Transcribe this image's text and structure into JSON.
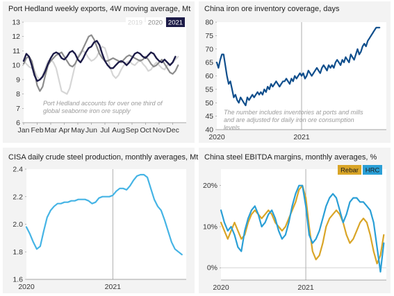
{
  "chart_data": [
    {
      "type": "line",
      "title": "Port Hedland weekly exports, 4W moving average, Mt",
      "categories": [
        "Jan",
        "Feb",
        "Mar",
        "Apr",
        "May",
        "Jun",
        "Jul",
        "Aug",
        "Sep",
        "Oct",
        "Nov",
        "Dec"
      ],
      "yticks": [
        "6",
        "7",
        "8",
        "9",
        "10",
        "11",
        "12",
        "13"
      ],
      "ylim": [
        6,
        13
      ],
      "annotation": "Port Hedland accounts for over one third of global seaborne iron ore supply",
      "series": [
        {
          "name": "2019",
          "color": "#d6d6d6",
          "x": [
            0,
            0.2,
            0.4,
            0.6,
            0.8,
            1,
            1.2,
            1.4,
            1.6,
            1.8,
            2,
            2.2,
            2.4,
            2.6,
            2.8,
            3,
            3.2,
            3.4,
            3.6,
            3.8,
            4,
            4.2,
            4.4,
            4.6,
            4.8,
            5,
            5.2,
            5.4,
            5.6,
            5.8,
            6,
            6.2,
            6.4,
            6.6,
            6.8,
            7,
            7.2,
            7.4,
            7.6,
            7.8,
            8,
            8.2,
            8.4,
            8.6,
            8.8,
            9,
            9.2,
            9.4,
            9.6,
            9.8,
            10,
            10.2,
            10.4,
            10.6,
            10.8,
            11,
            11.2,
            11.4
          ],
          "values": [
            10.3,
            10.1,
            9.9,
            9.8,
            9.6,
            9.2,
            9.0,
            9.3,
            9.8,
            10.3,
            10.4,
            10.2,
            9.8,
            9.0,
            8.2,
            8.1,
            8.0,
            8.4,
            9.2,
            10.0,
            10.6,
            10.9,
            11.0,
            10.8,
            10.5,
            10.3,
            10.4,
            10.6,
            11.0,
            11.3,
            11.2,
            10.6,
            9.8,
            9.3,
            9.1,
            9.3,
            9.7,
            10.0,
            10.2,
            10.3,
            10.1,
            10.0,
            10.2,
            10.4,
            10.1,
            9.9,
            9.6,
            9.7,
            10.0,
            10.2,
            10.0,
            9.8,
            9.7,
            10.0,
            10.1,
            10.2,
            10.4,
            10.6
          ]
        },
        {
          "name": "2020",
          "color": "#8c8c8c",
          "x": [
            0,
            0.2,
            0.4,
            0.6,
            0.8,
            1,
            1.2,
            1.4,
            1.6,
            1.8,
            2,
            2.2,
            2.4,
            2.6,
            2.8,
            3,
            3.2,
            3.4,
            3.6,
            3.8,
            4,
            4.2,
            4.4,
            4.6,
            4.8,
            5,
            5.2,
            5.4,
            5.6,
            5.8,
            6,
            6.2,
            6.4,
            6.6,
            6.8,
            7,
            7.2,
            7.4,
            7.6,
            7.8,
            8,
            8.2,
            8.4,
            8.6,
            8.8,
            9,
            9.2,
            9.4,
            9.6,
            9.8,
            10,
            10.2,
            10.4,
            10.6,
            10.8,
            11,
            11.2,
            11.4
          ],
          "values": [
            10.1,
            10.5,
            10.6,
            10.3,
            9.5,
            8.6,
            8.2,
            8.5,
            9.3,
            10.0,
            10.3,
            10.5,
            10.7,
            10.8,
            10.9,
            10.6,
            10.3,
            10.0,
            9.9,
            10.1,
            10.5,
            10.8,
            11.2,
            11.6,
            12.0,
            12.1,
            11.8,
            11.3,
            10.8,
            10.5,
            10.3,
            10.3,
            10.4,
            10.5,
            10.4,
            10.3,
            10.2,
            10.4,
            10.6,
            10.7,
            10.6,
            10.5,
            10.4,
            10.3,
            10.4,
            10.6,
            10.4,
            10.1,
            9.9,
            10.0,
            10.2,
            10.4,
            10.1,
            9.8,
            9.5,
            9.4,
            9.6,
            10.0
          ]
        },
        {
          "name": "2021",
          "color": "#1c1b47",
          "x": [
            0,
            0.2,
            0.4,
            0.6,
            0.8,
            1,
            1.2,
            1.4,
            1.6,
            1.8,
            2,
            2.2,
            2.4,
            2.6,
            2.8,
            3,
            3.2,
            3.4,
            3.6,
            3.8,
            4,
            4.2,
            4.4,
            4.6,
            4.8,
            5,
            5.2,
            5.4,
            5.6,
            5.8,
            6,
            6.2,
            6.4,
            6.6,
            6.8,
            7,
            7.2,
            7.4,
            7.6,
            7.8,
            8,
            8.2,
            8.4,
            8.6,
            8.8,
            9,
            9.2,
            9.4,
            9.6,
            9.8,
            10,
            10.2,
            10.4,
            10.6,
            10.8,
            11,
            11.2
          ],
          "values": [
            10.3,
            10.8,
            10.6,
            10.0,
            9.3,
            8.9,
            9.0,
            9.2,
            9.6,
            10.1,
            10.5,
            10.8,
            10.9,
            10.8,
            10.5,
            10.4,
            10.6,
            10.9,
            11.0,
            10.8,
            10.4,
            10.2,
            10.5,
            10.9,
            11.2,
            11.3,
            11.6,
            11.7,
            11.4,
            10.8,
            10.3,
            10.0,
            9.8,
            9.8,
            10.0,
            10.2,
            10.3,
            10.2,
            10.0,
            10.2,
            10.5,
            10.8,
            10.9,
            10.8,
            10.6,
            10.5,
            10.7,
            10.9,
            10.8,
            10.5,
            10.3,
            10.2,
            10.4,
            10.2,
            10.0,
            10.2,
            10.6
          ]
        }
      ]
    },
    {
      "type": "line",
      "title": "China iron ore inventory coverage, days",
      "xticks": [
        "2020",
        "2021"
      ],
      "yticks": [
        "40",
        "45",
        "50",
        "55",
        "60",
        "65",
        "70",
        "75",
        "80"
      ],
      "ylim": [
        40,
        80
      ],
      "xlim": [
        0,
        2.0
      ],
      "annotation": "The number includes inventories at ports and mills and are adjusted for daily iron ore consumption levels",
      "series": [
        {
          "color": "#0f4e8c",
          "x": [
            0,
            0.02,
            0.04,
            0.06,
            0.08,
            0.1,
            0.12,
            0.14,
            0.16,
            0.18,
            0.2,
            0.22,
            0.24,
            0.26,
            0.28,
            0.3,
            0.32,
            0.34,
            0.36,
            0.38,
            0.4,
            0.42,
            0.44,
            0.46,
            0.48,
            0.5,
            0.52,
            0.54,
            0.56,
            0.58,
            0.6,
            0.62,
            0.64,
            0.66,
            0.68,
            0.7,
            0.72,
            0.74,
            0.76,
            0.78,
            0.8,
            0.82,
            0.84,
            0.86,
            0.88,
            0.9,
            0.92,
            0.94,
            0.96,
            0.98,
            1.0,
            1.02,
            1.04,
            1.06,
            1.08,
            1.1,
            1.12,
            1.14,
            1.16,
            1.18,
            1.2,
            1.22,
            1.24,
            1.26,
            1.28,
            1.3,
            1.32,
            1.34,
            1.36,
            1.38,
            1.4,
            1.42,
            1.44,
            1.46,
            1.48,
            1.5,
            1.52,
            1.54,
            1.56,
            1.58,
            1.6,
            1.62,
            1.64,
            1.66,
            1.68,
            1.7,
            1.72,
            1.74,
            1.76,
            1.78,
            1.8,
            1.82,
            1.84,
            1.86,
            1.88,
            1.9,
            1.92
          ],
          "values": [
            65,
            63,
            66,
            68,
            68,
            64,
            60,
            57,
            58,
            55,
            52,
            53,
            51,
            50,
            52,
            51,
            50,
            49,
            52,
            51,
            52,
            53,
            52,
            53,
            54,
            53,
            54,
            53,
            55,
            54,
            56,
            55,
            57,
            56,
            57,
            58,
            57,
            56,
            57,
            58,
            58,
            59,
            58,
            57,
            59,
            58,
            60,
            59,
            60,
            61,
            60,
            61,
            59,
            60,
            62,
            61,
            60,
            61,
            62,
            63,
            62,
            61,
            63,
            64,
            63,
            62,
            64,
            63,
            64,
            63,
            65,
            66,
            65,
            64,
            66,
            65,
            67,
            66,
            65,
            68,
            67,
            66,
            68,
            70,
            68,
            69,
            71,
            72,
            71,
            73,
            74,
            75,
            76,
            77,
            78,
            78,
            78
          ]
        }
      ]
    },
    {
      "type": "line",
      "title": "CISA daily crude steel production, monthly averages, Mt",
      "xticks": [
        "2020",
        "2021"
      ],
      "yticks": [
        "1.6",
        "1.8",
        "2.0",
        "2.2",
        "2.4"
      ],
      "ylim": [
        1.6,
        2.4
      ],
      "xlim": [
        0,
        1.85
      ],
      "series": [
        {
          "color": "#45b4e5",
          "x": [
            0,
            0.04,
            0.08,
            0.12,
            0.16,
            0.2,
            0.24,
            0.28,
            0.32,
            0.36,
            0.4,
            0.44,
            0.48,
            0.52,
            0.56,
            0.6,
            0.64,
            0.68,
            0.72,
            0.76,
            0.8,
            0.84,
            0.88,
            0.92,
            0.96,
            1.0,
            1.04,
            1.08,
            1.12,
            1.16,
            1.2,
            1.24,
            1.28,
            1.32,
            1.36,
            1.4,
            1.44,
            1.48,
            1.52,
            1.56,
            1.6,
            1.64,
            1.68,
            1.72,
            1.76,
            1.8
          ],
          "values": [
            1.98,
            1.93,
            1.87,
            1.82,
            1.84,
            1.95,
            2.05,
            2.1,
            2.13,
            2.15,
            2.15,
            2.16,
            2.16,
            2.17,
            2.17,
            2.18,
            2.18,
            2.18,
            2.17,
            2.15,
            2.16,
            2.19,
            2.2,
            2.2,
            2.2,
            2.21,
            2.24,
            2.26,
            2.26,
            2.25,
            2.28,
            2.32,
            2.35,
            2.36,
            2.36,
            2.34,
            2.26,
            2.18,
            2.13,
            2.1,
            2.03,
            1.95,
            1.87,
            1.82,
            1.8,
            1.78
          ]
        }
      ]
    },
    {
      "type": "line",
      "title": "China steel EBITDA margins, monthly averages, %",
      "xticks": [
        "2020",
        "2021"
      ],
      "yticks": [
        "0%",
        "10%",
        "20%"
      ],
      "ylim": [
        -3,
        24
      ],
      "xlim": [
        0,
        1.95
      ],
      "series": [
        {
          "name": "Rebar",
          "color": "#d9a527",
          "x": [
            0,
            0.04,
            0.08,
            0.12,
            0.16,
            0.2,
            0.24,
            0.28,
            0.32,
            0.36,
            0.4,
            0.44,
            0.48,
            0.52,
            0.56,
            0.6,
            0.64,
            0.68,
            0.72,
            0.76,
            0.8,
            0.84,
            0.88,
            0.92,
            0.96,
            1.0,
            1.04,
            1.08,
            1.12,
            1.16,
            1.2,
            1.24,
            1.28,
            1.32,
            1.36,
            1.4,
            1.44,
            1.48,
            1.52,
            1.56,
            1.6,
            1.64,
            1.68,
            1.72,
            1.76,
            1.8,
            1.84,
            1.88,
            1.92
          ],
          "values": [
            11,
            9,
            7,
            9,
            11,
            9,
            7,
            8,
            11,
            13,
            14,
            13,
            12,
            13,
            14,
            13,
            11,
            10,
            9,
            10,
            12,
            14,
            16,
            19,
            20,
            17,
            10,
            4,
            2,
            3,
            6,
            10,
            12,
            13,
            14,
            13,
            11,
            8,
            6,
            7,
            9,
            11,
            12,
            11,
            8,
            4,
            1,
            3,
            8
          ]
        },
        {
          "name": "HRC",
          "color": "#2a9fd6",
          "x": [
            0,
            0.04,
            0.08,
            0.12,
            0.16,
            0.2,
            0.24,
            0.28,
            0.32,
            0.36,
            0.4,
            0.44,
            0.48,
            0.52,
            0.56,
            0.6,
            0.64,
            0.68,
            0.72,
            0.76,
            0.8,
            0.84,
            0.88,
            0.92,
            0.96,
            1.0,
            1.04,
            1.08,
            1.12,
            1.16,
            1.2,
            1.24,
            1.28,
            1.32,
            1.36,
            1.4,
            1.44,
            1.48,
            1.52,
            1.56,
            1.6,
            1.64,
            1.68,
            1.72,
            1.76,
            1.8,
            1.84,
            1.88,
            1.92
          ],
          "values": [
            14,
            11,
            9,
            10,
            8,
            5,
            4,
            9,
            12,
            14,
            15,
            13,
            10,
            11,
            13,
            14,
            12,
            9,
            7,
            8,
            11,
            15,
            18,
            20,
            20,
            15,
            8,
            6,
            7,
            9,
            12,
            15,
            17,
            18,
            17,
            14,
            11,
            13,
            16,
            17,
            17,
            16,
            16,
            15,
            14,
            11,
            5,
            -1,
            6
          ]
        }
      ]
    }
  ]
}
